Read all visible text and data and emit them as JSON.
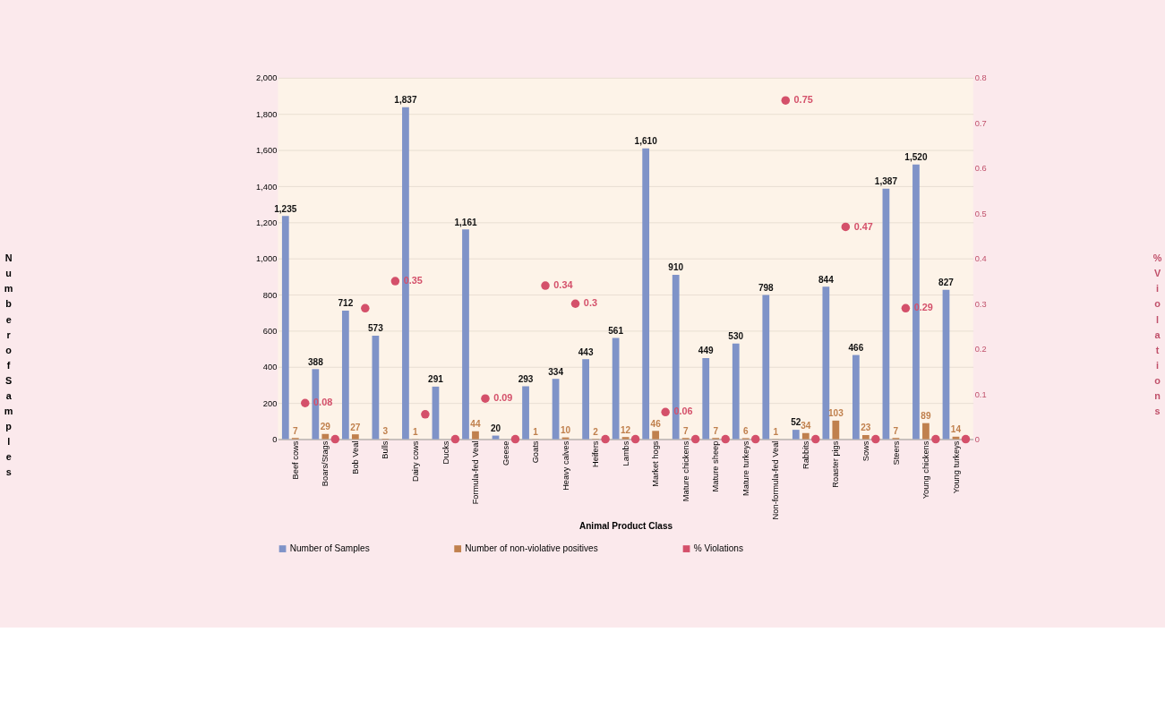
{
  "chart_data": {
    "type": "bar",
    "xlabel": "Animal Product Class",
    "ylabel": "Number of Samples",
    "y2label": "% Violations",
    "categories": [
      "Beef cows",
      "Boars/Stags",
      "Bob Veal",
      "Bulls",
      "Dairy cows",
      "Ducks",
      "Formula-fed Veal",
      "Geese",
      "Goats",
      "Heavy calves",
      "Heifers",
      "Lambs",
      "Market hogs",
      "Mature chickens",
      "Mature sheep",
      "Mature turkeys",
      "Non-formula-fed Veal",
      "Rabbits",
      "Roaster pigs",
      "Sows",
      "Steers",
      "Young chickens",
      "Young turkeys"
    ],
    "series": [
      {
        "name": "Number of Samples",
        "color": "#7f93c8",
        "values": [
          1235,
          388,
          712,
          573,
          1837,
          291,
          1161,
          20,
          293,
          334,
          443,
          561,
          1610,
          910,
          449,
          530,
          798,
          52,
          844,
          466,
          1387,
          1520,
          827
        ],
        "value_labels": [
          "1,235",
          "388",
          "712",
          "573",
          "1,837",
          "291",
          "1,161",
          "20",
          "293",
          "334",
          "443",
          "561",
          "1,610",
          "910",
          "449",
          "530",
          "798",
          "52",
          "844",
          "466",
          "1,387",
          "1,520",
          "827"
        ]
      },
      {
        "name": "Number of non-violative positives",
        "color": "#c0804d",
        "values": [
          7,
          29,
          27,
          3,
          1,
          null,
          44,
          null,
          1,
          10,
          2,
          12,
          46,
          7,
          7,
          6,
          1,
          34,
          103,
          23,
          7,
          89,
          14
        ],
        "value_labels": [
          "7",
          "29",
          "27",
          "3",
          "1",
          null,
          "44",
          null,
          "1",
          "10",
          "2",
          "12",
          "46",
          "7",
          "7",
          "6",
          "1",
          "34",
          "103",
          "23",
          "7",
          "89",
          "14"
        ]
      },
      {
        "name": "% Violations",
        "color": "#d4506a",
        "type": "scatter",
        "axis": "y2",
        "values": [
          0.08,
          0,
          0.29,
          0.35,
          0.055,
          0,
          0.09,
          0,
          0.34,
          0.3,
          0,
          0,
          0.06,
          0,
          0,
          0,
          0.75,
          0,
          0.47,
          0,
          0.29,
          0,
          0
        ],
        "value_labels": [
          "0.08",
          null,
          null,
          "0.35",
          null,
          null,
          "0.09",
          null,
          "0.34",
          "0.3",
          null,
          null,
          "0.06",
          null,
          null,
          null,
          "0.75",
          null,
          "0.47",
          null,
          "0.29",
          null,
          null
        ]
      }
    ],
    "ylim": [
      0,
      2000
    ],
    "yticks": [
      {
        "value": 0,
        "label": "0"
      },
      {
        "value": 200,
        "label": "200"
      },
      {
        "value": 400,
        "label": "400"
      },
      {
        "value": 600,
        "label": "600"
      },
      {
        "value": 800,
        "label": "800"
      },
      {
        "value": 1000,
        "label": "1,000"
      },
      {
        "value": 1200,
        "label": "1,200"
      },
      {
        "value": 1400,
        "label": "1,400"
      },
      {
        "value": 1600,
        "label": "1,600"
      },
      {
        "value": 1800,
        "label": "1,800"
      },
      {
        "value": 2000,
        "label": "2,000"
      }
    ],
    "y2lim": [
      0,
      0.8
    ],
    "y2ticks": [
      {
        "value": 0,
        "label": "0"
      },
      0.1,
      0.2,
      0.3,
      0.4,
      0.5,
      0.6,
      0.7,
      0.8
    ],
    "grid": "y",
    "legend": "bottom",
    "marker": "circle"
  }
}
